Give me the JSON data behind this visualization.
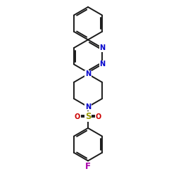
{
  "background": "#ffffff",
  "bond_color": "#1a1a1a",
  "N_pyridazine_color": "#0000cc",
  "N_piperazine_color": "#0000cc",
  "O_color": "#cc0000",
  "F_color": "#aa00aa",
  "S_color": "#999900",
  "line_width": 1.4,
  "figsize": [
    2.5,
    2.5
  ],
  "dpi": 100,
  "xlim": [
    -3.5,
    3.5
  ],
  "ylim": [
    -5.5,
    5.2
  ]
}
